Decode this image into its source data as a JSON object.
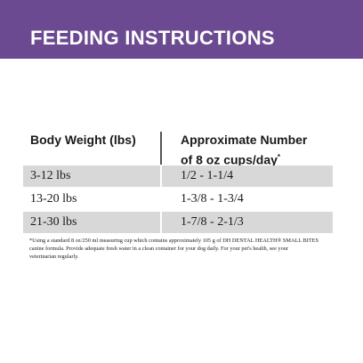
{
  "header": {
    "title": "FEEDING INSTRUCTIONS"
  },
  "table": {
    "columns": [
      "Body Weight (lbs)",
      {
        "line1": "Approximate Number",
        "line2": "of 8 oz cups/day",
        "mark": "*"
      }
    ],
    "rows": [
      [
        "3-12 lbs",
        "1/2 - 1-1/4"
      ],
      [
        "13-20 lbs",
        "1-3/8 - 1-3/4"
      ],
      [
        "21-30 lbs",
        "1-7/8 - 2-1/3"
      ]
    ]
  },
  "footnote": [
    "*Using a standard 8 oz/250 ml measuring cup which contains approximately 105 g of DH DENTAL HEALTH® SMALL BITES",
    "canine formula. Provide adequate fresh water in a clean container for your dog daily. For your pet's health, see your",
    "veterinarian regularly."
  ]
}
